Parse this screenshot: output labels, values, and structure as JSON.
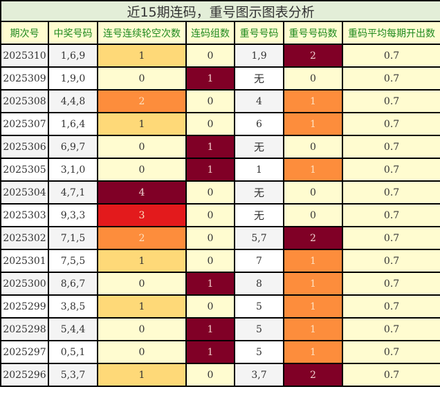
{
  "title": "近15期连码，重号图示图表分析",
  "headers": [
    "期次号",
    "中奖号码",
    "连号连续轮空次数",
    "连码组数",
    "重号号码",
    "重号号码数",
    "重码平均每期开出数"
  ],
  "colors": {
    "title_bg": "#e3eed8",
    "header_bg": "#fffcd0",
    "header_text": "#1f8a1f",
    "level0": "#fffcd0",
    "level1": "#fed978",
    "level2": "#fd8d3c",
    "level3": "#e31a1c",
    "level4": "#800026"
  },
  "rows": [
    {
      "period": "2025310",
      "numbers": "1,6,9",
      "gap": "1",
      "lian": "0",
      "repeat": "1,9",
      "repeat_count": "2",
      "avg": "0.7"
    },
    {
      "period": "2025309",
      "numbers": "1,9,0",
      "gap": "0",
      "lian": "1",
      "repeat": "无",
      "repeat_count": "0",
      "avg": "0.7"
    },
    {
      "period": "2025308",
      "numbers": "4,4,8",
      "gap": "2",
      "lian": "0",
      "repeat": "4",
      "repeat_count": "1",
      "avg": "0.7"
    },
    {
      "period": "2025307",
      "numbers": "1,6,4",
      "gap": "1",
      "lian": "0",
      "repeat": "6",
      "repeat_count": "1",
      "avg": "0.7"
    },
    {
      "period": "2025306",
      "numbers": "6,9,7",
      "gap": "0",
      "lian": "1",
      "repeat": "无",
      "repeat_count": "0",
      "avg": "0.7"
    },
    {
      "period": "2025305",
      "numbers": "3,1,0",
      "gap": "0",
      "lian": "1",
      "repeat": "1",
      "repeat_count": "1",
      "avg": "0.7"
    },
    {
      "period": "2025304",
      "numbers": "4,7,1",
      "gap": "4",
      "lian": "0",
      "repeat": "无",
      "repeat_count": "0",
      "avg": "0.7"
    },
    {
      "period": "2025303",
      "numbers": "9,3,3",
      "gap": "3",
      "lian": "0",
      "repeat": "无",
      "repeat_count": "0",
      "avg": "0.7"
    },
    {
      "period": "2025302",
      "numbers": "7,1,5",
      "gap": "2",
      "lian": "0",
      "repeat": "5,7",
      "repeat_count": "2",
      "avg": "0.7"
    },
    {
      "period": "2025301",
      "numbers": "7,5,5",
      "gap": "1",
      "lian": "0",
      "repeat": "7",
      "repeat_count": "1",
      "avg": "0.7"
    },
    {
      "period": "2025300",
      "numbers": "8,6,7",
      "gap": "0",
      "lian": "1",
      "repeat": "8",
      "repeat_count": "1",
      "avg": "0.7"
    },
    {
      "period": "2025299",
      "numbers": "3,8,5",
      "gap": "1",
      "lian": "0",
      "repeat": "5",
      "repeat_count": "1",
      "avg": "0.7"
    },
    {
      "period": "2025298",
      "numbers": "5,4,4",
      "gap": "0",
      "lian": "1",
      "repeat": "5",
      "repeat_count": "1",
      "avg": "0.7"
    },
    {
      "period": "2025297",
      "numbers": "0,5,1",
      "gap": "0",
      "lian": "1",
      "repeat": "5",
      "repeat_count": "1",
      "avg": "0.7"
    },
    {
      "period": "2025296",
      "numbers": "5,3,7",
      "gap": "1",
      "lian": "0",
      "repeat": "3,7",
      "repeat_count": "2",
      "avg": "0.7"
    }
  ]
}
